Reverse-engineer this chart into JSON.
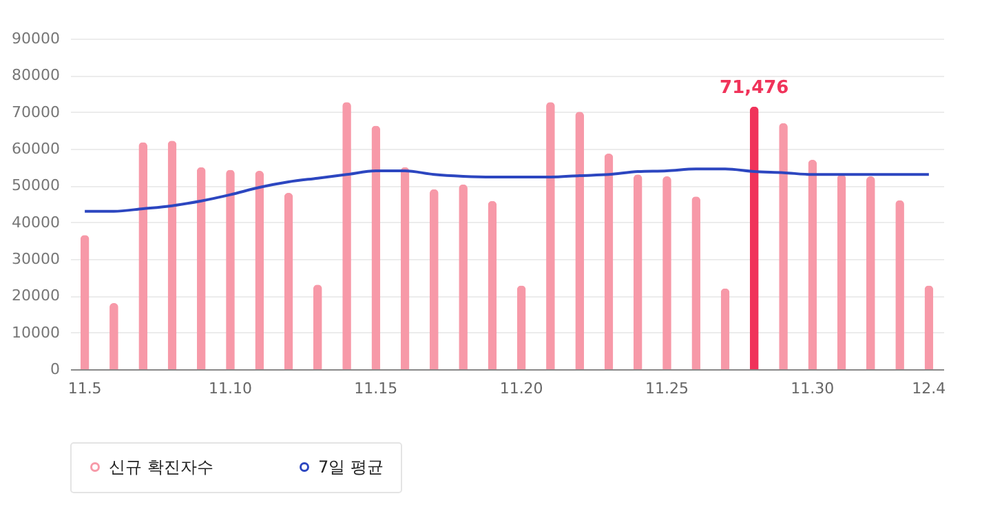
{
  "chart_data": {
    "type": "bar",
    "categories": [
      "11.5",
      null,
      null,
      null,
      null,
      "11.10",
      null,
      null,
      null,
      null,
      "11.15",
      null,
      null,
      null,
      null,
      "11.20",
      null,
      null,
      null,
      null,
      "11.25",
      null,
      null,
      null,
      null,
      "11.30",
      null,
      null,
      null,
      "12.4"
    ],
    "series": [
      {
        "name": "신규 확진자수",
        "color": "#f799a8",
        "colors": [
          "#f799a8",
          "#f799a8",
          "#f799a8",
          "#f799a8",
          "#f799a8",
          "#f799a8",
          "#f799a8",
          "#f799a8",
          "#f799a8",
          "#f799a8",
          "#f799a8",
          "#f799a8",
          "#f799a8",
          "#f799a8",
          "#f799a8",
          "#f799a8",
          "#f799a8",
          "#f799a8",
          "#f799a8",
          "#f799a8",
          "#f799a8",
          "#f799a8",
          "#f799a8",
          "#f0335a",
          "#f799a8",
          "#f799a8",
          "#f799a8",
          "#f799a8",
          "#f799a8",
          "#f799a8"
        ],
        "values": [
          36500,
          18000,
          61800,
          62200,
          55000,
          54300,
          54000,
          48000,
          23000,
          72700,
          66300,
          55000,
          49000,
          50300,
          45800,
          22800,
          72700,
          70100,
          58700,
          53000,
          52500,
          47000,
          22000,
          71476,
          67000,
          57000,
          53000,
          52500,
          46000,
          22800
        ],
        "value_labels": [
          null,
          null,
          null,
          null,
          null,
          null,
          null,
          null,
          null,
          null,
          null,
          null,
          null,
          null,
          null,
          null,
          null,
          null,
          null,
          null,
          null,
          null,
          null,
          "71,476",
          null,
          null,
          null,
          null,
          null,
          null
        ]
      },
      {
        "name": "7일 평균",
        "type": "line",
        "color": "#2c46c0",
        "values": [
          43000,
          43000,
          43700,
          44500,
          45800,
          47500,
          49500,
          51000,
          52000,
          53000,
          54000,
          54000,
          53000,
          52500,
          52300,
          52300,
          52300,
          52700,
          53000,
          53800,
          54000,
          54500,
          54500,
          53800,
          53500,
          53000,
          53000,
          53000,
          53000,
          53000
        ]
      }
    ],
    "ylim": [
      0,
      90000
    ],
    "yticks": [
      0,
      10000,
      20000,
      30000,
      40000,
      50000,
      60000,
      70000,
      80000,
      90000
    ],
    "grid": "y",
    "legend": "bottom"
  }
}
